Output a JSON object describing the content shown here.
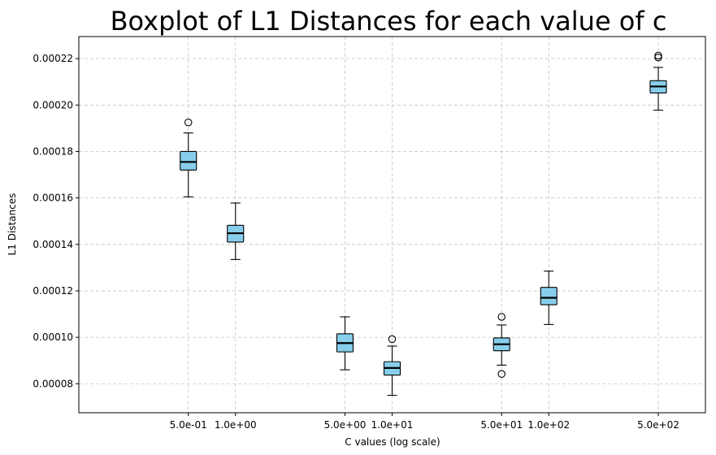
{
  "chart_data": {
    "type": "boxplot",
    "title": "Boxplot of L1 Distances for each value of c",
    "xlabel": "C values (log scale)",
    "ylabel": "L1 Distances",
    "x_scale": "log",
    "ylim": [
      6.75e-05,
      0.0002295
    ],
    "xlim": [
      0.1,
      1000
    ],
    "grid": true,
    "box_color": "#87ceeb",
    "median_color": "#000000",
    "yticks": [
      "0.00008",
      "0.00010",
      "0.00012",
      "0.00014",
      "0.00016",
      "0.00018",
      "0.00020",
      "0.00022"
    ],
    "ytick_values": [
      8e-05,
      0.0001,
      0.00012,
      0.00014,
      0.00016,
      0.00018,
      0.0002,
      0.00022
    ],
    "xticks": [
      "5.0e-01",
      "1.0e+00",
      "5.0e+00",
      "1.0e+01",
      "5.0e+01",
      "1.0e+02",
      "5.0e+02"
    ],
    "boxes": [
      {
        "c": 0.5,
        "label": "5.0e-01",
        "whislo": 0.0001605,
        "q1": 0.000172,
        "med": 0.0001755,
        "q3": 0.00018,
        "whishi": 0.000188,
        "fliers": [
          0.0001925
        ]
      },
      {
        "c": 1,
        "label": "1.0e+00",
        "whislo": 0.0001335,
        "q1": 0.000141,
        "med": 0.0001448,
        "q3": 0.0001482,
        "whishi": 0.0001578,
        "fliers": []
      },
      {
        "c": 5,
        "label": "5.0e+00",
        "whislo": 8.6e-05,
        "q1": 9.37e-05,
        "med": 9.75e-05,
        "q3": 0.0001015,
        "whishi": 0.0001088,
        "fliers": []
      },
      {
        "c": 10,
        "label": "1.0e+01",
        "whislo": 7.5e-05,
        "q1": 8.37e-05,
        "med": 8.68e-05,
        "q3": 8.95e-05,
        "whishi": 9.62e-05,
        "fliers": [
          9.92e-05
        ]
      },
      {
        "c": 50,
        "label": "5.0e+01",
        "whislo": 8.8e-05,
        "q1": 9.42e-05,
        "med": 9.7e-05,
        "q3": 9.97e-05,
        "whishi": 0.0001053,
        "fliers": [
          0.0001088,
          8.42e-05
        ]
      },
      {
        "c": 100,
        "label": "1.0e+02",
        "whislo": 0.0001055,
        "q1": 0.000114,
        "med": 0.000117,
        "q3": 0.0001215,
        "whishi": 0.0001285,
        "fliers": []
      },
      {
        "c": 500,
        "label": "5.0e+02",
        "whislo": 0.0001978,
        "q1": 0.0002052,
        "med": 0.000208,
        "q3": 0.0002105,
        "whishi": 0.0002162,
        "fliers": [
          0.0002205,
          0.0002213
        ]
      }
    ]
  }
}
